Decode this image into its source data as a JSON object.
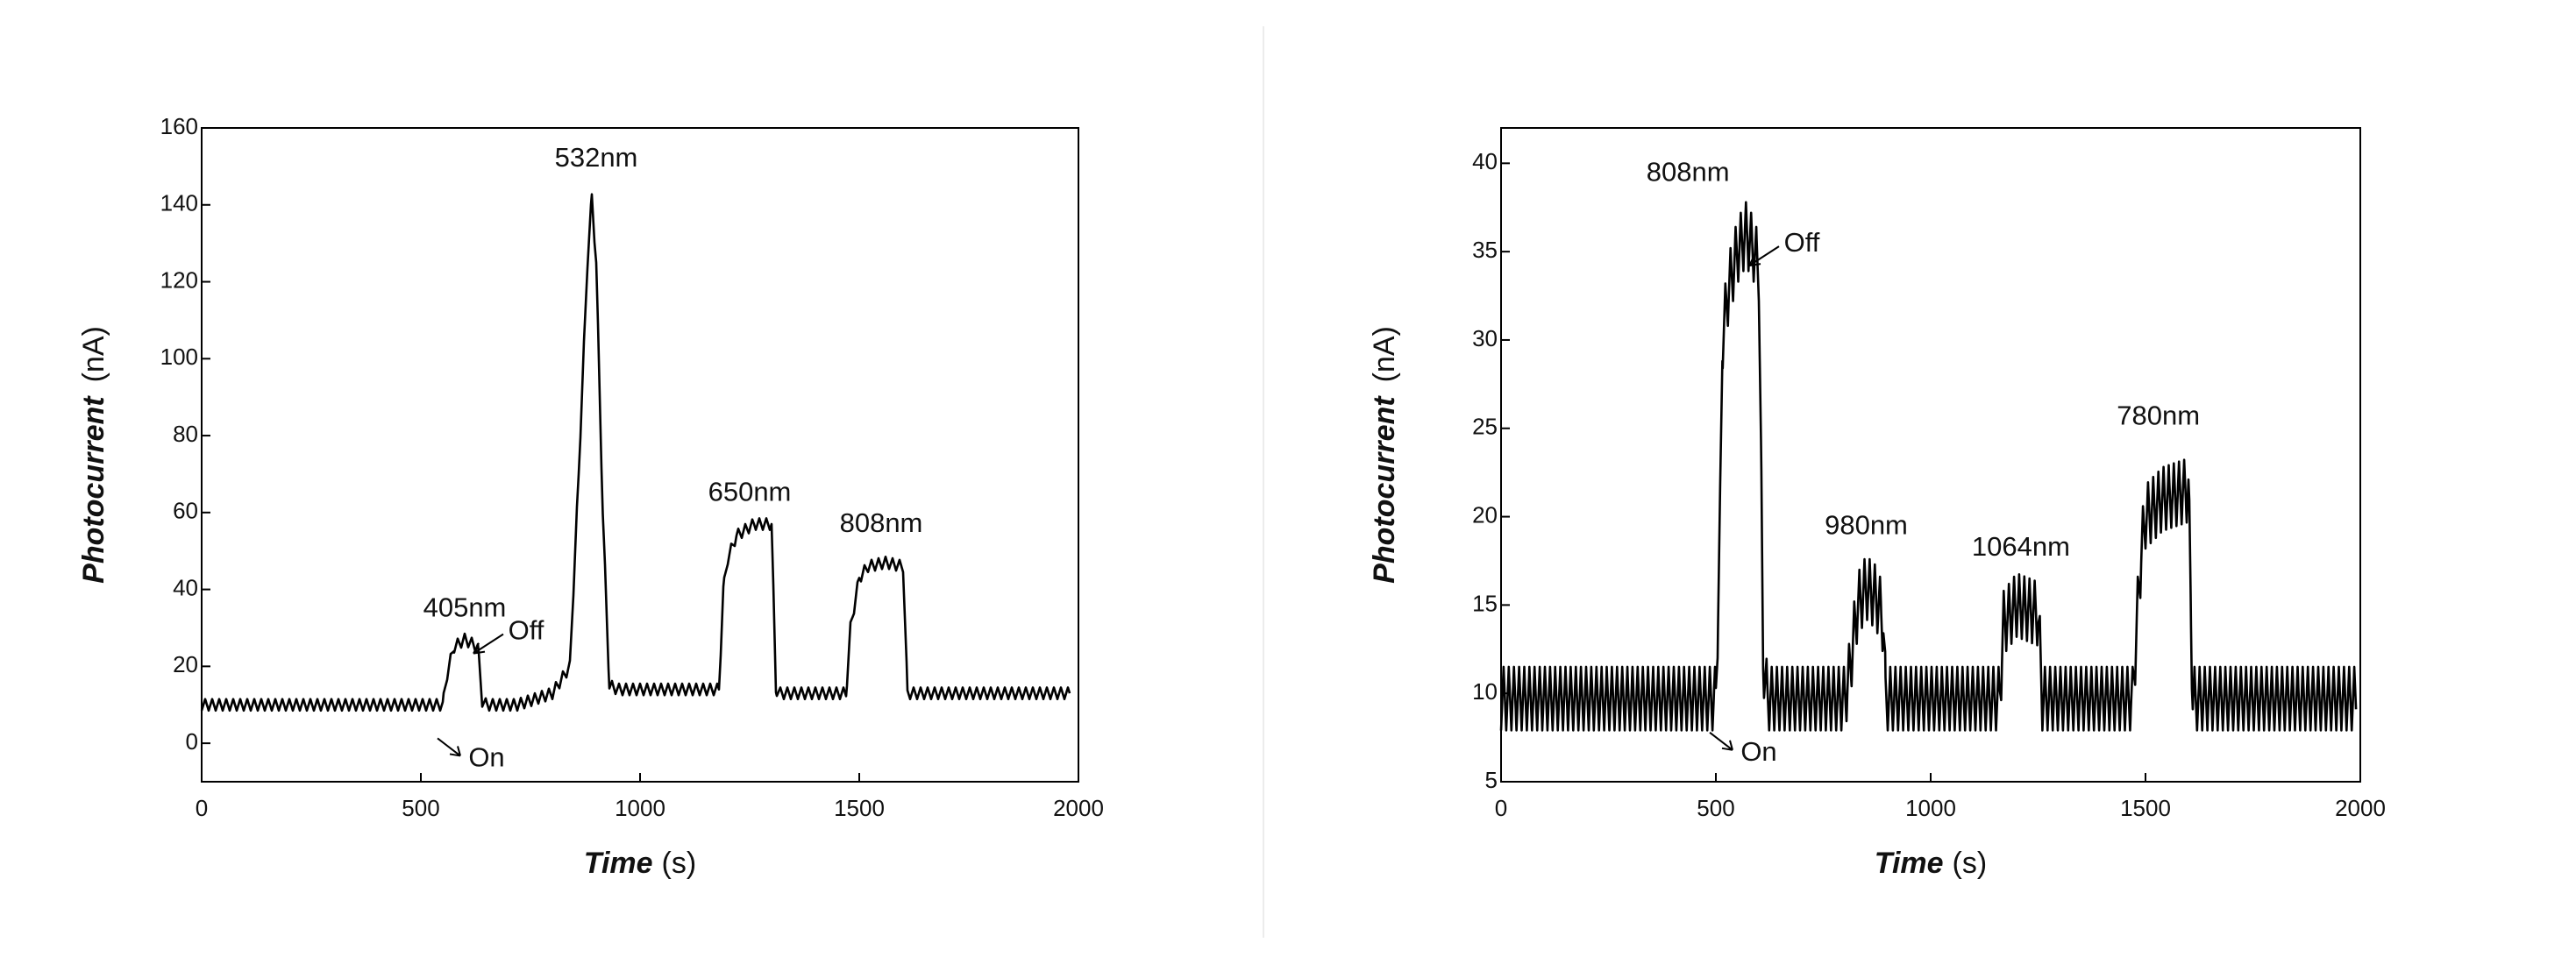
{
  "chart_data": [
    {
      "type": "line",
      "title": "",
      "xlabel_main": "Time",
      "xlabel_unit": "(s)",
      "ylabel_main": "Photocurrent",
      "ylabel_unit": "(nA)",
      "xlim": [
        0,
        2000
      ],
      "ylim": [
        -10,
        160
      ],
      "xticks": [
        0,
        500,
        1000,
        1500,
        2000
      ],
      "yticks": [
        0,
        20,
        40,
        60,
        80,
        100,
        120,
        140,
        160
      ],
      "grid": false,
      "series": [
        {
          "color": "#000000",
          "baseline": 10,
          "ripple_amplitude": 1.5,
          "ripple_period_s": 16,
          "x": [
            0,
            550,
            560,
            575,
            600,
            630,
            640,
            650,
            700,
            720,
            800,
            840,
            860,
            880,
            890,
            900,
            915,
            930,
            950,
            1000,
            1100,
            1180,
            1190,
            1200,
            1220,
            1260,
            1300,
            1310,
            1320,
            1400,
            1470,
            1480,
            1500,
            1520,
            1560,
            1600,
            1610,
            1620,
            1700,
            1800,
            1900,
            1980
          ],
          "y": [
            10,
            10,
            18,
            25,
            27,
            25,
            11,
            10,
            10,
            10,
            13,
            20,
            70,
            125,
            142,
            125,
            60,
            15,
            14,
            14,
            14,
            14,
            40,
            48,
            54,
            57,
            57,
            14,
            13,
            13,
            13,
            30,
            43,
            46,
            47,
            46,
            13,
            13,
            13,
            13,
            13,
            13
          ]
        }
      ],
      "annotations": [
        {
          "text": "532nm",
          "x": 900,
          "y": 150
        },
        {
          "text": "405nm",
          "x": 600,
          "y": 33
        },
        {
          "text": "Off",
          "x": 740,
          "y": 27
        },
        {
          "text": "On",
          "x": 650,
          "y": -6
        },
        {
          "text": "650nm",
          "x": 1250,
          "y": 63
        },
        {
          "text": "808nm",
          "x": 1550,
          "y": 55
        }
      ]
    },
    {
      "type": "line",
      "title": "",
      "xlabel_main": "Time",
      "xlabel_unit": "(s)",
      "ylabel_main": "Photocurrent",
      "ylabel_unit": "(nA)",
      "xlim": [
        0,
        2000
      ],
      "ylim": [
        5,
        42
      ],
      "xticks": [
        0,
        500,
        1000,
        1500,
        2000
      ],
      "yticks": [
        5,
        10,
        15,
        20,
        25,
        30,
        35,
        40
      ],
      "grid": false,
      "series": [
        {
          "color": "#000000",
          "baseline": 9.7,
          "ripple_amplitude": 1.8,
          "ripple_period_s": 12,
          "x": [
            0,
            500,
            510,
            515,
            530,
            550,
            570,
            590,
            600,
            610,
            620,
            800,
            810,
            830,
            850,
            870,
            880,
            890,
            895,
            1160,
            1170,
            1200,
            1250,
            1260,
            1470,
            1480,
            1490,
            1500,
            1540,
            1600,
            1610,
            1620,
            1700,
            1800,
            1900,
            1990
          ],
          "y": [
            9.7,
            9.7,
            20,
            30,
            33,
            35,
            36,
            35,
            34,
            12,
            9.7,
            9.7,
            11,
            15,
            16,
            15.5,
            15,
            14,
            9.7,
            9.7,
            14,
            15,
            14.5,
            9.7,
            9.7,
            14,
            18,
            20,
            21,
            21.5,
            9.7,
            9.7,
            9.7,
            9.7,
            9.7,
            9.7
          ]
        }
      ],
      "annotations": [
        {
          "text": "808nm",
          "x": 435,
          "y": 39
        },
        {
          "text": "Off",
          "x": 700,
          "y": 35
        },
        {
          "text": "On",
          "x": 600,
          "y": 6.2
        },
        {
          "text": "980nm",
          "x": 850,
          "y": 19
        },
        {
          "text": "1064nm",
          "x": 1210,
          "y": 17.8
        },
        {
          "text": "780nm",
          "x": 1530,
          "y": 25.2
        }
      ]
    }
  ]
}
